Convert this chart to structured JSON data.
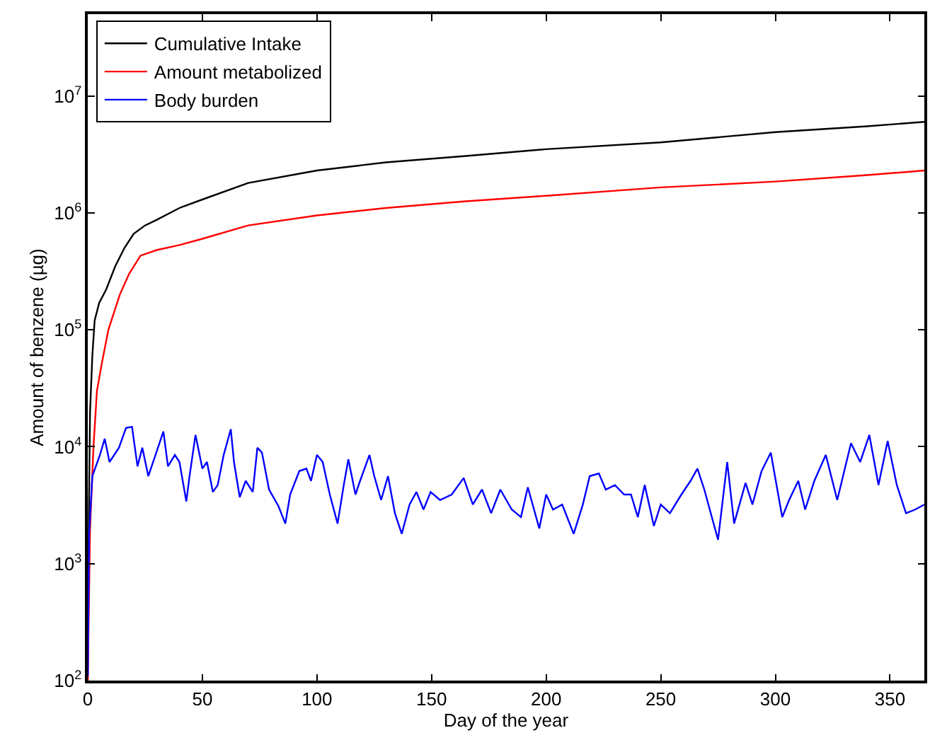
{
  "chart_data": {
    "type": "line",
    "xlabel": "Day of the year",
    "ylabel": "Amount of benzene (µg)",
    "log": "y",
    "legend": "top left",
    "marker": "none",
    "line_style": "solid",
    "xlim": [
      0,
      365
    ],
    "xticks": [
      0,
      50,
      100,
      150,
      200,
      250,
      300,
      350
    ],
    "ylim": [
      100,
      50000000
    ],
    "yticks": [
      {
        "value": 100,
        "label": "10$^{2}$"
      },
      {
        "value": 1000,
        "label": "10$^{3}$"
      },
      {
        "value": 10000,
        "label": "10$^{4}$"
      },
      {
        "value": 100000,
        "label": "10$^{5}$"
      },
      {
        "value": 1000000,
        "label": "10$^{6}$"
      },
      {
        "value": 10000000,
        "label": "10$^{7}$"
      }
    ],
    "series": [
      {
        "name": "Cumulative Intake",
        "color": "#000000",
        "x": [
          0,
          0.5,
          1,
          2,
          3,
          5,
          8,
          12,
          16,
          20,
          25,
          30,
          40,
          50,
          70,
          100,
          130,
          164,
          200,
          250,
          300,
          340,
          365
        ],
        "values": [
          100,
          3000,
          20000,
          60000,
          120000,
          170000,
          220000,
          350000,
          500000,
          660000,
          780000,
          870000,
          1100000,
          1300000,
          1800000,
          2300000,
          2700000,
          3050000,
          3500000,
          4000000,
          4900000,
          5500000,
          6000000
        ]
      },
      {
        "name": "Amount metabolized",
        "color": "#ff0000",
        "x": [
          0,
          1,
          2.5,
          4,
          6,
          9,
          14,
          18,
          23,
          30,
          40,
          50,
          70,
          100,
          130,
          164,
          200,
          250,
          300,
          340,
          365
        ],
        "values": [
          100,
          2000,
          10000,
          30000,
          50000,
          100000,
          200000,
          300000,
          430000,
          480000,
          530000,
          600000,
          780000,
          950000,
          1100000,
          1250000,
          1400000,
          1650000,
          1850000,
          2100000,
          2300000
        ]
      },
      {
        "name": "Body burden",
        "color": "#0000ff",
        "x": [
          0,
          0.6,
          2,
          5.3,
          7.4,
          9.5,
          13.6,
          16.7,
          19.3,
          21.7,
          23.8,
          26.4,
          29.9,
          33,
          35,
          38,
          40,
          43,
          44.4,
          47,
          50,
          52,
          54.6,
          56.7,
          59.3,
          62.4,
          63.8,
          66.3,
          68.9,
          72,
          74,
          76,
          79.1,
          83.2,
          86.2,
          88.3,
          92.3,
          95.4,
          97.4,
          100,
          102.5,
          105.6,
          109,
          111.7,
          113.7,
          116.8,
          118.8,
          122.9,
          125,
          128,
          131,
          134,
          137,
          140.4,
          143.4,
          146.5,
          149.6,
          153.7,
          158.8,
          164,
          168,
          172,
          176,
          180,
          185,
          189,
          192,
          197,
          200,
          203,
          207,
          212,
          216,
          219,
          223,
          226,
          230,
          234,
          237,
          240,
          243,
          247,
          250,
          254,
          259,
          263,
          266,
          269,
          275,
          279,
          282,
          287,
          290,
          294,
          298,
          303,
          306,
          310,
          313,
          317,
          322,
          327,
          333,
          337,
          341,
          345,
          349,
          353,
          357,
          361,
          365
        ],
        "values": [
          110,
          1800,
          5600,
          8500,
          11700,
          7400,
          9800,
          14500,
          14800,
          6800,
          9800,
          5600,
          8900,
          13500,
          6800,
          8500,
          7400,
          3400,
          5600,
          12600,
          6500,
          7400,
          4100,
          4700,
          8500,
          14100,
          7400,
          3700,
          5100,
          4100,
          9800,
          8900,
          4300,
          3100,
          2200,
          3900,
          6200,
          6500,
          5100,
          8500,
          7400,
          3900,
          2200,
          4700,
          7800,
          3900,
          5100,
          8500,
          5600,
          3500,
          5600,
          2700,
          1800,
          3200,
          4100,
          2900,
          4100,
          3500,
          3900,
          5400,
          3200,
          4300,
          2700,
          4300,
          2900,
          2500,
          4500,
          2000,
          3900,
          2900,
          3200,
          1800,
          3200,
          5600,
          5900,
          4300,
          4700,
          3900,
          3900,
          2500,
          4700,
          2100,
          3200,
          2700,
          3900,
          5100,
          6500,
          4300,
          1600,
          7400,
          2200,
          4900,
          3200,
          6200,
          8900,
          2500,
          3500,
          5100,
          2900,
          5100,
          8500,
          3500,
          10700,
          7400,
          12600,
          4700,
          11200,
          4700,
          2700,
          2900,
          3200
        ]
      }
    ]
  }
}
